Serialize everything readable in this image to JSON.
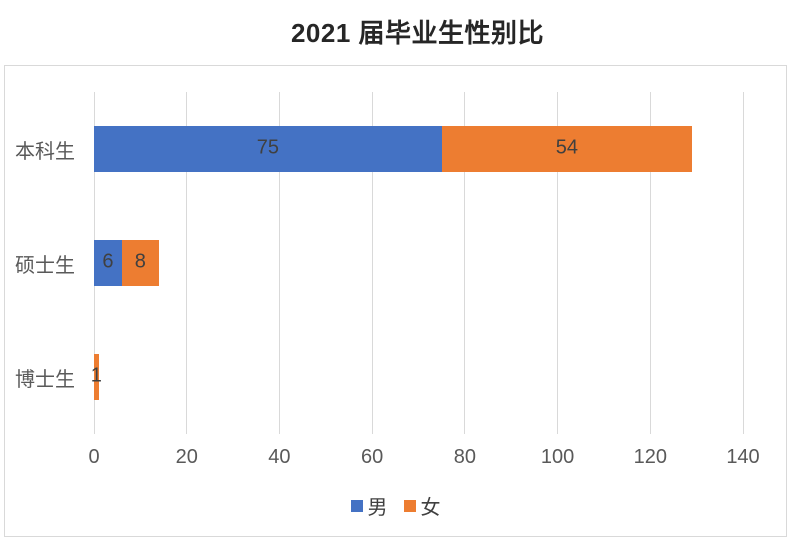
{
  "chart_data": {
    "type": "bar",
    "orientation": "horizontal",
    "stacked": true,
    "title": "2021 届毕业生性别比",
    "categories": [
      "本科生",
      "硕士生",
      "博士生"
    ],
    "series": [
      {
        "id": "male",
        "name": "男",
        "color": "#4472C4",
        "values": [
          75,
          6,
          0
        ]
      },
      {
        "id": "female",
        "name": "女",
        "color": "#ED7D31",
        "values": [
          54,
          8,
          1
        ]
      }
    ],
    "xlim": [
      0,
      140
    ],
    "x_ticks": [
      0,
      20,
      40,
      60,
      80,
      100,
      120,
      140
    ],
    "grid": "vertical-major",
    "legend_position": "bottom",
    "data_labels": true
  },
  "colors": {
    "gridline": "#D9D9D9",
    "panel_border": "#D9D9D9",
    "axis_text": "#595959",
    "category_text": "#595959",
    "data_label_text": "#404040",
    "legend_text": "#404040",
    "title_text": "#262626",
    "background": "#FFFFFF"
  }
}
